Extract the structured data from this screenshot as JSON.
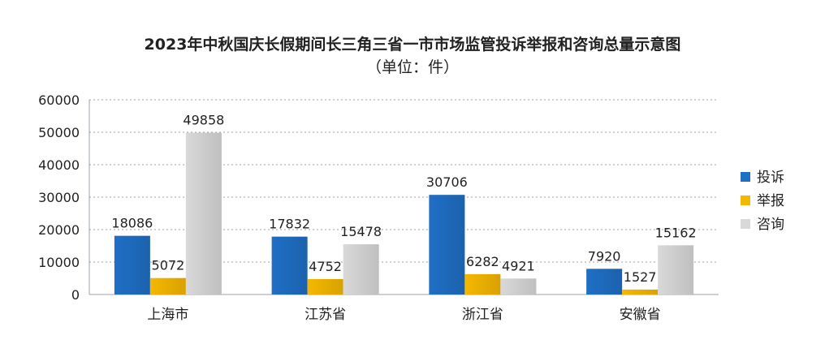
{
  "chart_data": {
    "type": "bar",
    "title": "2023年中秋国庆长假期间长三角三省一市市场监管投诉举报和咨询总量示意图",
    "subtitle": "（单位：件）",
    "categories": [
      "上海市",
      "江苏省",
      "浙江省",
      "安徽省"
    ],
    "series": [
      {
        "name": "投诉",
        "color": "#1f6fc5",
        "values": [
          18086,
          17832,
          30706,
          7920
        ]
      },
      {
        "name": "举报",
        "color": "#f5b800",
        "values": [
          5072,
          4752,
          6282,
          1527
        ]
      },
      {
        "name": "咨询",
        "color": "#d9d9d9",
        "values": [
          49858,
          15478,
          4921,
          15162
        ]
      }
    ],
    "ylim": [
      0,
      60000
    ],
    "yticks": [
      0,
      10000,
      20000,
      30000,
      40000,
      50000,
      60000
    ],
    "grid": true,
    "legend": "right"
  }
}
